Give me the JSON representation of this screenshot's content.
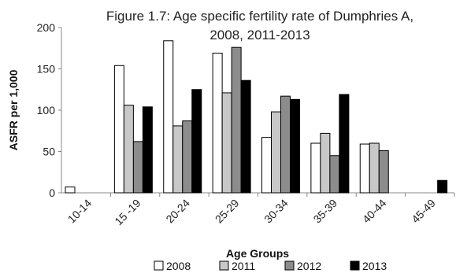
{
  "chart_data": {
    "type": "bar",
    "title_line1": "Figure 1.7: Age specific fertility rate of Dumphries A,",
    "title_line2": "2008, 2011-2013",
    "xlabel": "Age Groups",
    "ylabel": "ASFR per 1,000",
    "ylim": [
      0,
      200
    ],
    "yticks": [
      0,
      50,
      100,
      150,
      200
    ],
    "categories": [
      "10-14",
      "15 -19",
      "20-24",
      "25-29",
      "30-34",
      "35-39",
      "40-44",
      "45-49"
    ],
    "series": [
      {
        "name": "2008",
        "color": "#ffffff",
        "values": [
          7,
          154,
          184,
          169,
          67,
          60,
          59,
          0
        ]
      },
      {
        "name": "2011",
        "color": "#c8c8c8",
        "values": [
          0,
          106,
          81,
          121,
          98,
          72,
          60,
          0
        ]
      },
      {
        "name": "2012",
        "color": "#8c8c8c",
        "values": [
          0,
          62,
          87,
          176,
          117,
          45,
          51,
          0
        ]
      },
      {
        "name": "2013",
        "color": "#000000",
        "values": [
          0,
          104,
          125,
          136,
          113,
          119,
          0,
          15
        ]
      }
    ],
    "legend_position": "bottom",
    "grid": false
  }
}
